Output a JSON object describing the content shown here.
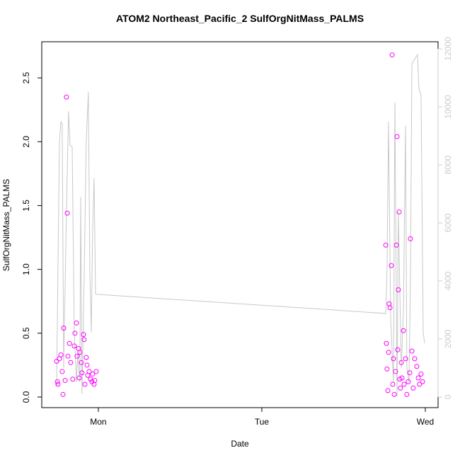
{
  "chart_data": {
    "type": "scatter",
    "title": "ATOM2 Northeast_Pacific_2 SulfOrgNitMass_PALMS",
    "x_label": "Date",
    "y_label": "SulfOrgNitMass_PALMS",
    "xlim": [
      0.654,
      3.078
    ],
    "xticks": [
      {
        "value": 1,
        "label": "Mon"
      },
      {
        "value": 2,
        "label": "Tue"
      },
      {
        "value": 3,
        "label": "Wed"
      }
    ],
    "ylim": [
      -0.083,
      2.783
    ],
    "yticks": [
      {
        "value": 0,
        "label": "0.0"
      },
      {
        "value": 0.5,
        "label": "0.5"
      },
      {
        "value": 1,
        "label": "1.0"
      },
      {
        "value": 1.5,
        "label": "1.5"
      },
      {
        "value": 2,
        "label": "2.0"
      },
      {
        "value": 2.5,
        "label": "2.5"
      }
    ],
    "y2lim": [
      -366,
      12245
    ],
    "y2ticks": [
      0,
      2000,
      4000,
      6000,
      8000,
      10000,
      12000
    ],
    "y2_color": "#cccccc",
    "series": [
      {
        "type": "scatter",
        "color": "#ff00ff",
        "x": [
          0.745,
          0.749,
          0.753,
          0.762,
          0.771,
          0.779,
          0.784,
          0.788,
          0.797,
          0.805,
          0.81,
          0.814,
          0.823,
          0.831,
          0.844,
          0.853,
          0.857,
          0.866,
          0.87,
          0.879,
          0.883,
          0.887,
          0.896,
          0.9,
          0.909,
          0.913,
          0.918,
          0.926,
          0.931,
          0.935,
          0.944,
          0.952,
          0.961,
          0.965,
          0.974,
          0.978,
          0.987,
          2.758,
          2.762,
          2.766,
          2.771,
          2.775,
          2.779,
          2.784,
          2.792,
          2.797,
          2.801,
          2.805,
          2.81,
          2.818,
          2.823,
          2.827,
          2.831,
          2.835,
          2.84,
          2.844,
          2.848,
          2.853,
          2.857,
          2.866,
          2.87,
          2.879,
          2.887,
          2.896,
          2.905,
          2.909,
          2.918,
          2.926,
          2.935,
          2.948,
          2.957,
          2.965,
          2.974,
          2.983
        ],
        "values": [
          0.28,
          0.12,
          0.1,
          0.3,
          0.33,
          0.2,
          0.02,
          0.54,
          0.13,
          2.35,
          1.44,
          0.32,
          0.42,
          0.27,
          0.14,
          0.4,
          0.5,
          0.58,
          0.32,
          0.38,
          0.15,
          0.35,
          0.27,
          0.19,
          0.49,
          0.45,
          0.1,
          0.31,
          0.25,
          0.17,
          0.2,
          0.14,
          0.12,
          0.18,
          0.1,
          0.13,
          0.2,
          1.19,
          0.42,
          0.22,
          0.05,
          0.35,
          0.73,
          0.7,
          1.03,
          2.68,
          0.1,
          0.3,
          0.02,
          0.2,
          1.19,
          2.04,
          0.37,
          0.84,
          1.45,
          0.14,
          0.07,
          0.27,
          0.15,
          0.52,
          0.1,
          0.3,
          0.02,
          0.12,
          0.19,
          1.24,
          0.36,
          0.07,
          0.3,
          0.24,
          0.15,
          0.1,
          0.18,
          0.12
        ]
      },
      {
        "type": "line",
        "axis": "y2",
        "color": "#c8c8c8",
        "x": [
          0.745,
          0.762,
          0.771,
          0.779,
          0.788,
          0.805,
          0.818,
          0.827,
          0.84,
          0.853,
          0.866,
          0.874,
          0.887,
          0.892,
          0.9,
          0.913,
          0.926,
          0.939,
          0.948,
          0.957,
          0.965,
          0.974,
          0.983,
          0.991,
          2.758,
          2.766,
          2.775,
          2.788,
          2.805,
          2.814,
          2.827,
          2.835,
          2.853,
          2.866,
          2.879,
          2.887,
          2.9,
          2.909,
          2.918,
          2.931,
          2.952,
          2.961,
          2.974,
          2.987,
          2.996
        ],
        "values": [
          390,
          8800,
          9490,
          9410,
          1000,
          6370,
          9850,
          8680,
          8630,
          2220,
          510,
          1490,
          510,
          6900,
          100,
          3930,
          8800,
          10510,
          4410,
          2220,
          5630,
          7540,
          3560,
          3540,
          2880,
          4410,
          9490,
          2710,
          510,
          10150,
          20,
          6370,
          1000,
          2950,
          9340,
          1000,
          510,
          3930,
          11490,
          11610,
          11800,
          10630,
          10390,
          2220,
          1850
        ]
      }
    ]
  }
}
